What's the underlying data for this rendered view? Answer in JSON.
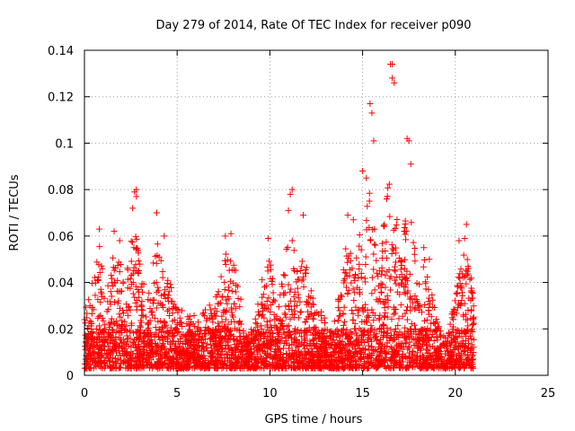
{
  "chart_data": {
    "type": "scatter",
    "title": "Day 279 of 2014, Rate Of TEC Index for receiver p090",
    "xlabel": "GPS time / hours",
    "ylabel": "ROTI / TECUs",
    "xlim": [
      0,
      25
    ],
    "ylim": [
      0,
      0.14
    ],
    "xticks": [
      0,
      5,
      10,
      15,
      20,
      25
    ],
    "yticks": [
      0,
      0.02,
      0.04,
      0.06,
      0.08,
      0.1,
      0.12,
      0.14
    ],
    "xtick_labels": [
      "0",
      "5",
      "10",
      "15",
      "20",
      "25"
    ],
    "ytick_labels": [
      "0",
      "0.02",
      "0.04",
      "0.06",
      "0.08",
      "0.1",
      "0.12",
      "0.14"
    ],
    "grid": true,
    "marker": "+",
    "color": "#ff0000",
    "series": [
      {
        "name": "ROTI",
        "x": [
          0.3,
          0.8,
          1.6,
          1.9,
          2.6,
          2.7,
          2.8,
          2.8,
          3.9,
          4.3,
          7.6,
          7.9,
          9.9,
          11.0,
          11.1,
          11.2,
          11.8,
          14.2,
          14.5,
          15.0,
          15.2,
          15.4,
          15.5,
          15.6,
          16.3,
          16.5,
          16.6,
          16.6,
          16.7,
          17.4,
          17.5,
          17.6,
          18.3,
          18.6,
          20.2,
          20.5,
          20.6
        ],
        "y": [
          0.03,
          0.063,
          0.062,
          0.058,
          0.072,
          0.079,
          0.08,
          0.077,
          0.07,
          0.06,
          0.06,
          0.061,
          0.059,
          0.071,
          0.078,
          0.08,
          0.069,
          0.069,
          0.067,
          0.088,
          0.085,
          0.117,
          0.113,
          0.101,
          0.076,
          0.134,
          0.134,
          0.128,
          0.126,
          0.102,
          0.101,
          0.091,
          0.055,
          0.05,
          0.058,
          0.059,
          0.065
        ]
      }
    ]
  }
}
